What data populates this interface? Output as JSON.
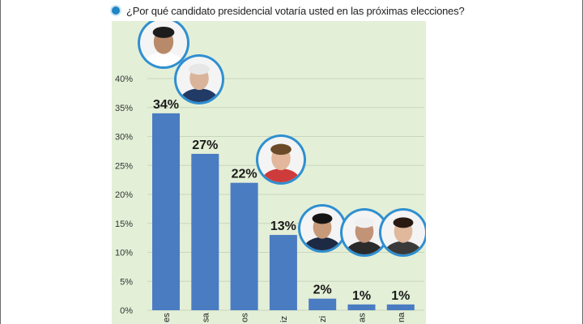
{
  "question": "¿Por qué candidato presidencial votaría usted en las próximas elecciones?",
  "colors": {
    "bar": "#4a7cc2",
    "bar_edge": "#3a6aaf",
    "background": "#e3efd7",
    "grid": "#c9d6be",
    "bullet": "#1f86c8"
  },
  "chart_data": {
    "type": "bar",
    "title": "¿Por qué candidato presidencial votaría usted en las próximas elecciones?",
    "categories": [
      "es",
      "sa",
      "os",
      "iz",
      "zi",
      "as",
      "na"
    ],
    "values": [
      34,
      27,
      22,
      13,
      2,
      1,
      1
    ],
    "value_labels": [
      "34%",
      "27%",
      "22%",
      "13%",
      "2%",
      "1%",
      "1%"
    ],
    "yticks": [
      "0%",
      "5%",
      "10%",
      "15%",
      "20%",
      "25%",
      "30%",
      "35%",
      "40%"
    ],
    "ylim": [
      0,
      40
    ],
    "grid": true,
    "candidate_photos": [
      "photo-1",
      "photo-2",
      "photo-3",
      "photo-4",
      "photo-5",
      "photo-6"
    ]
  }
}
